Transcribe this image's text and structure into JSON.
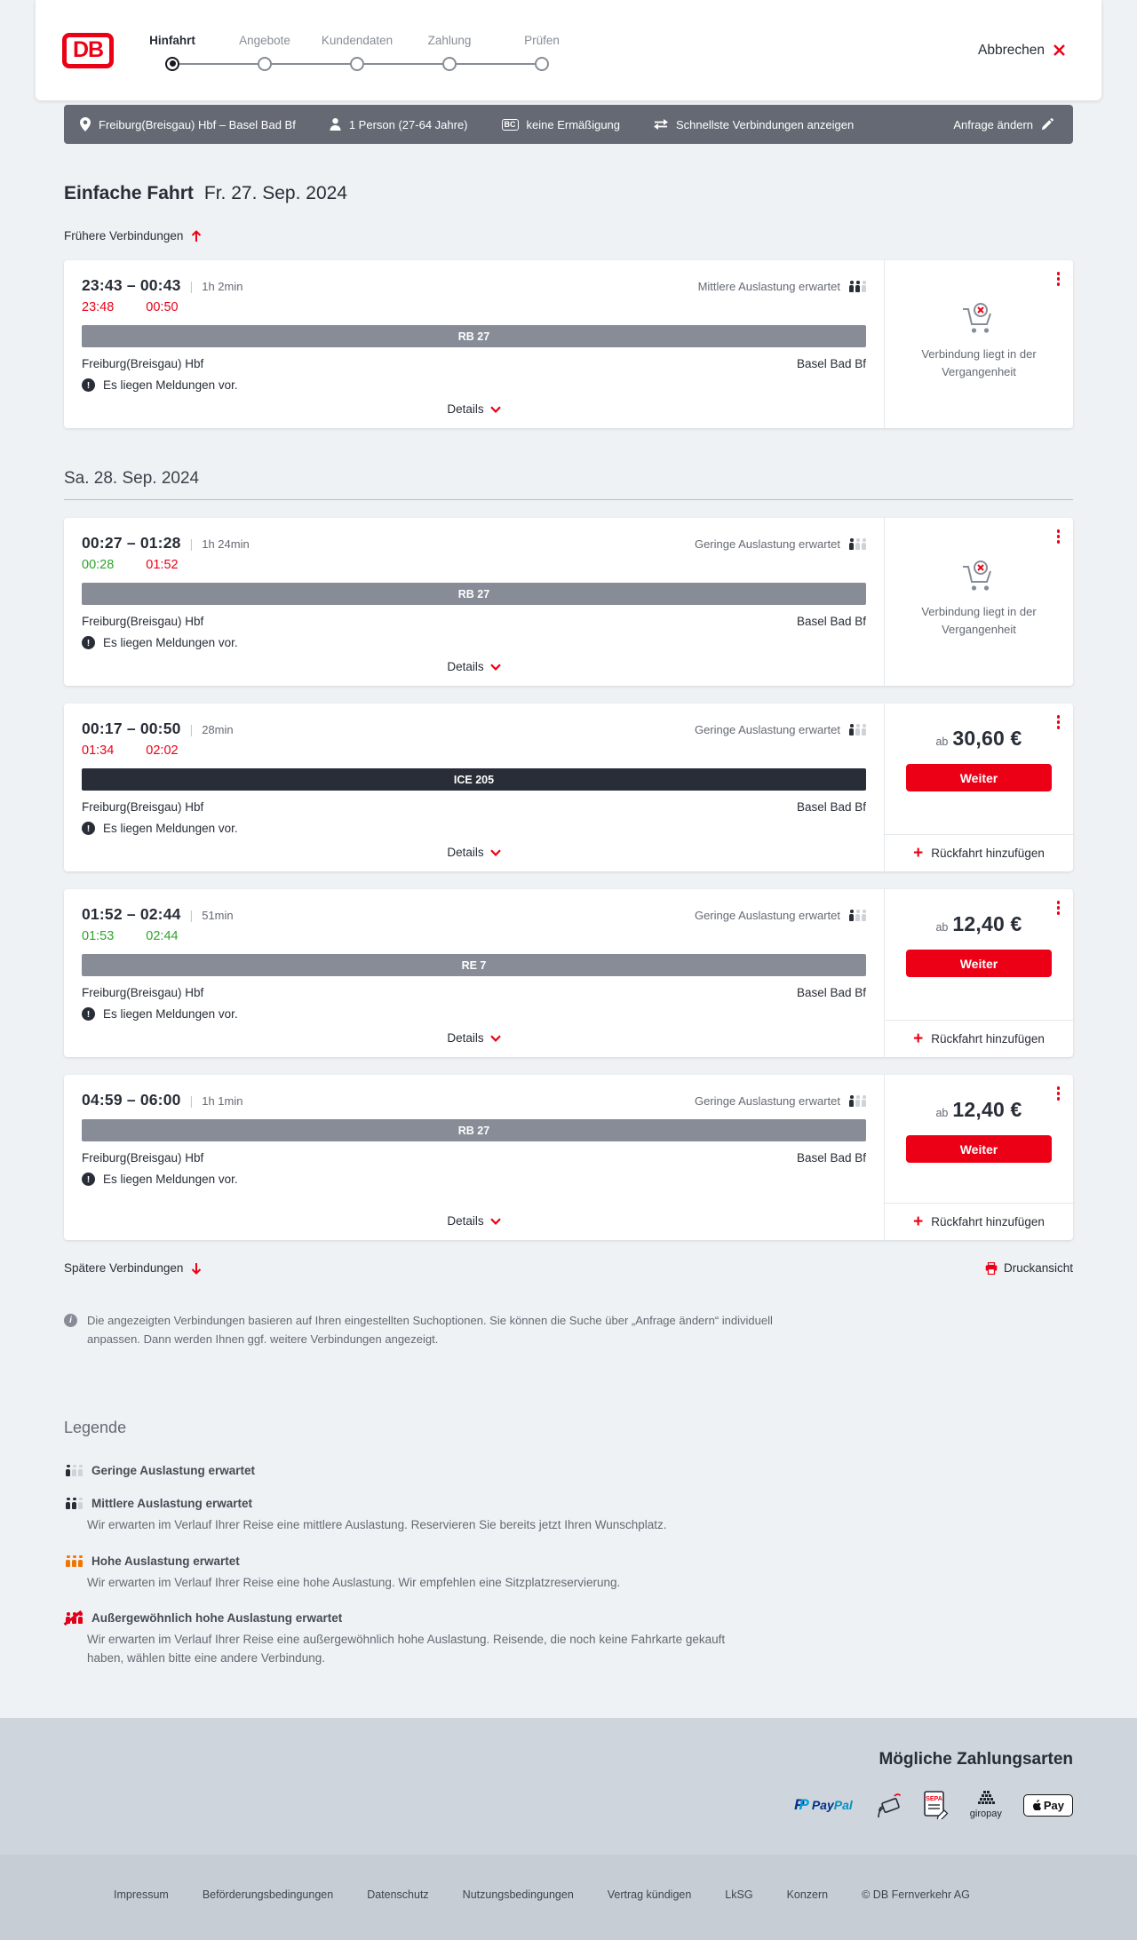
{
  "header": {
    "logo_text": "DB",
    "steps": [
      {
        "label": "Hinfahrt",
        "active": true
      },
      {
        "label": "Angebote",
        "active": false
      },
      {
        "label": "Kundendaten",
        "active": false
      },
      {
        "label": "Zahlung",
        "active": false
      },
      {
        "label": "Prüfen",
        "active": false
      }
    ],
    "cancel_label": "Abbrechen"
  },
  "summary_bar": {
    "route": "Freiburg(Breisgau) Hbf – Basel Bad Bf",
    "passengers": "1 Person (27-64 Jahre)",
    "discount_badge": "BC",
    "discount": "keine Ermäßigung",
    "fastest": "Schnellste Verbindungen anzeigen",
    "change_request": "Anfrage ändern"
  },
  "results": {
    "title": "Einfache Fahrt",
    "date": "Fr. 27. Sep. 2024",
    "earlier_label": "Frühere Verbindungen",
    "second_date_header": "Sa. 28. Sep. 2024",
    "later_label": "Spätere Verbindungen",
    "print_label": "Druckansicht",
    "details_label": "Details",
    "past_label": "Verbindung liegt in der Vergangenheit",
    "price_prefix": "ab",
    "weiter_label": "Weiter",
    "return_label": "Rückfahrt hinzufügen",
    "info_note": "Die angezeigten Verbindungen basieren auf Ihren eingestellten Suchoptionen. Sie können die Suche über „Anfrage ändern“ individuell anpassen. Dann werden Ihnen ggf. weitere Verbindungen angezeigt.",
    "connections": [
      {
        "day": 1,
        "depart": "23:43",
        "arrive": "00:43",
        "duration": "1h 2min",
        "occupancy": "Mittlere Auslastung erwartet",
        "occupancy_level": 2,
        "realtime": [
          {
            "t": "23:48",
            "s": "late"
          },
          {
            "t": "00:50",
            "s": "late"
          }
        ],
        "train": "RB 27",
        "train_style": "regional",
        "from": "Freiburg(Breisgau) Hbf",
        "to": "Basel Bad Bf",
        "notice": "Es liegen Meldungen vor.",
        "panel": "past"
      },
      {
        "day": 2,
        "depart": "00:27",
        "arrive": "01:28",
        "duration": "1h 24min",
        "occupancy": "Geringe Auslastung erwartet",
        "occupancy_level": 1,
        "realtime": [
          {
            "t": "00:28",
            "s": "ontime"
          },
          {
            "t": "01:52",
            "s": "late"
          }
        ],
        "train": "RB 27",
        "train_style": "regional",
        "from": "Freiburg(Breisgau) Hbf",
        "to": "Basel Bad Bf",
        "notice": "Es liegen Meldungen vor.",
        "panel": "past"
      },
      {
        "day": 2,
        "depart": "00:17",
        "arrive": "00:50",
        "duration": "28min",
        "occupancy": "Geringe Auslastung erwartet",
        "occupancy_level": 1,
        "realtime": [
          {
            "t": "01:34",
            "s": "late"
          },
          {
            "t": "02:02",
            "s": "late"
          }
        ],
        "train": "ICE 205",
        "train_style": "ice",
        "from": "Freiburg(Breisgau) Hbf",
        "to": "Basel Bad Bf",
        "notice": "Es liegen Meldungen vor.",
        "panel": "price",
        "price": "30,60 €"
      },
      {
        "day": 2,
        "depart": "01:52",
        "arrive": "02:44",
        "duration": "51min",
        "occupancy": "Geringe Auslastung erwartet",
        "occupancy_level": 1,
        "realtime": [
          {
            "t": "01:53",
            "s": "ontime"
          },
          {
            "t": "02:44",
            "s": "ontime"
          }
        ],
        "train": "RE 7",
        "train_style": "regional",
        "from": "Freiburg(Breisgau) Hbf",
        "to": "Basel Bad Bf",
        "notice": "Es liegen Meldungen vor.",
        "panel": "price",
        "price": "12,40 €"
      },
      {
        "day": 2,
        "depart": "04:59",
        "arrive": "06:00",
        "duration": "1h 1min",
        "occupancy": "Geringe Auslastung erwartet",
        "occupancy_level": 1,
        "realtime": [],
        "train": "RB 27",
        "train_style": "regional",
        "from": "Freiburg(Breisgau) Hbf",
        "to": "Basel Bad Bf",
        "notice": "Es liegen Meldungen vor.",
        "panel": "price",
        "price": "12,40 €"
      }
    ]
  },
  "legend": {
    "title": "Legende",
    "items": [
      {
        "label": "Geringe Auslastung erwartet",
        "level": 1,
        "desc": ""
      },
      {
        "label": "Mittlere Auslastung erwartet",
        "level": 2,
        "desc": "Wir erwarten im Verlauf Ihrer Reise eine mittlere Auslastung. Reservieren Sie bereits jetzt Ihren Wunschplatz."
      },
      {
        "label": "Hohe Auslastung erwartet",
        "level": 3,
        "desc": "Wir erwarten im Verlauf Ihrer Reise eine hohe Auslastung. Wir empfehlen eine Sitzplatzreservierung."
      },
      {
        "label": "Außergewöhnlich hohe Auslastung erwartet",
        "level": 4,
        "desc": "Wir erwarten im Verlauf Ihrer Reise eine außergewöhnlich hohe Auslastung. Reisende, die noch keine Fahrkarte gekauft haben, wählen bitte eine andere Verbindung."
      }
    ]
  },
  "payments": {
    "title": "Mögliche Zahlungsarten",
    "methods": [
      {
        "id": "paypal",
        "label": "PayPal",
        "mark": "P",
        "text1": "Pay",
        "text2": "Pal"
      },
      {
        "id": "kreditkarte",
        "label": "Kreditkarte"
      },
      {
        "id": "sepa",
        "label": "SEPA-Lastschrift",
        "badge": "SEPA"
      },
      {
        "id": "giropay",
        "label": "giropay"
      },
      {
        "id": "applepay",
        "label": "Apple Pay",
        "badge": "Pay"
      }
    ]
  },
  "footer": {
    "links": [
      "Impressum",
      "Beförderungsbedingungen",
      "Datenschutz",
      "Nutzungsbedingungen",
      "Vertrag kündigen",
      "LkSG",
      "Konzern",
      "© DB Fernverkehr AG"
    ]
  }
}
